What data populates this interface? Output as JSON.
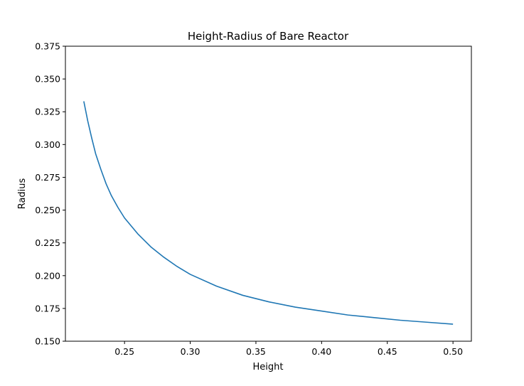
{
  "chart_data": {
    "type": "line",
    "title": "Height-Radius of Bare Reactor",
    "xlabel": "Height",
    "ylabel": "Radius",
    "xlim": [
      0.205,
      0.514
    ],
    "ylim": [
      0.15,
      0.375
    ],
    "x_ticks": [
      "0.25",
      "0.30",
      "0.35",
      "0.40",
      "0.45",
      "0.50"
    ],
    "y_ticks": [
      "0.150",
      "0.175",
      "0.200",
      "0.225",
      "0.250",
      "0.275",
      "0.300",
      "0.325",
      "0.350",
      "0.375"
    ],
    "grid": false,
    "series": [
      {
        "color": "#1f77b4",
        "x": [
          0.219,
          0.222,
          0.225,
          0.228,
          0.232,
          0.236,
          0.24,
          0.245,
          0.25,
          0.26,
          0.27,
          0.28,
          0.29,
          0.3,
          0.32,
          0.34,
          0.36,
          0.38,
          0.4,
          0.42,
          0.44,
          0.46,
          0.48,
          0.5
        ],
        "y": [
          0.333,
          0.318,
          0.305,
          0.293,
          0.281,
          0.27,
          0.261,
          0.252,
          0.244,
          0.232,
          0.222,
          0.214,
          0.207,
          0.201,
          0.192,
          0.185,
          0.18,
          0.176,
          0.173,
          0.17,
          0.168,
          0.166,
          0.1645,
          0.163
        ]
      }
    ]
  }
}
